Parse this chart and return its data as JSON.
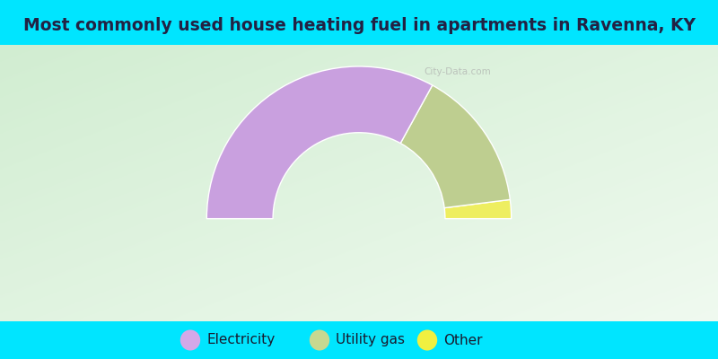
{
  "title": "Most commonly used house heating fuel in apartments in Ravenna, KY",
  "categories": [
    "Electricity",
    "Utility gas",
    "Other"
  ],
  "values": [
    66.0,
    30.0,
    4.0
  ],
  "colors": [
    "#c9a0df",
    "#bece90",
    "#eeee60"
  ],
  "legend_colors": [
    "#d4a8e8",
    "#c8d890",
    "#f0f040"
  ],
  "cyan_bar_color": "#00e5ff",
  "title_color": "#222244",
  "title_fontsize": 13.5,
  "legend_fontsize": 11,
  "watermark_text": "City-Data.com",
  "bg_color_topleft": "#d8eed8",
  "bg_color_center": "#eaf5ea",
  "bg_color_topright": "#f5faf5"
}
